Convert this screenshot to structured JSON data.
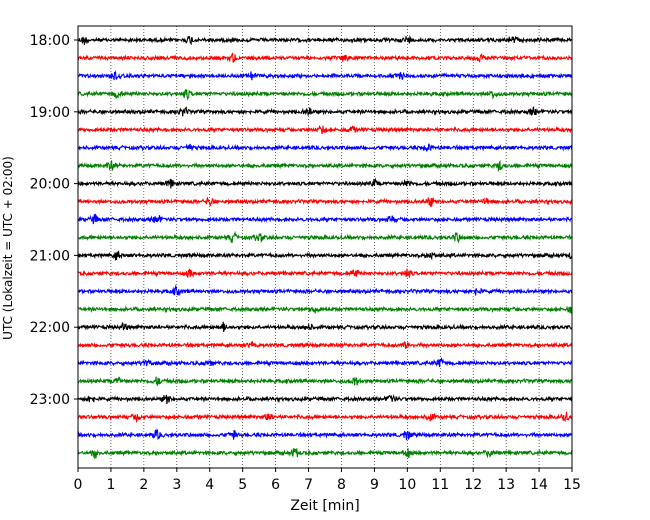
{
  "chart_data": {
    "type": "line",
    "xlabel": "Zeit  [min]",
    "ylabel": "UTC (Lokalzeit = UTC + 02:00)",
    "xlim": [
      0,
      15
    ],
    "x_ticks": [
      0,
      1,
      2,
      3,
      4,
      5,
      6,
      7,
      8,
      9,
      10,
      11,
      12,
      13,
      14,
      15
    ],
    "x_tick_labels": [
      "0",
      "1",
      "2",
      "3",
      "4",
      "5",
      "6",
      "7",
      "8",
      "9",
      "10",
      "11",
      "12",
      "13",
      "14",
      "15"
    ],
    "y_tick_labels": [
      "18:00",
      "19:00",
      "20:00",
      "21:00",
      "22:00",
      "23:00"
    ],
    "y_tick_row_index": [
      0,
      4,
      8,
      12,
      16,
      20
    ],
    "trace_minutes_per_row": 15,
    "row_start_times": [
      "18:00",
      "18:15",
      "18:30",
      "18:45",
      "19:00",
      "19:15",
      "19:30",
      "19:45",
      "20:00",
      "20:15",
      "20:30",
      "20:45",
      "21:00",
      "21:15",
      "21:30",
      "21:45",
      "22:00",
      "22:15",
      "22:30",
      "22:45",
      "23:00",
      "23:15",
      "23:30",
      "23:45"
    ],
    "row_colors": [
      "#000000",
      "#ff0000",
      "#0000ff",
      "#008000"
    ],
    "grid": "vertical-dotted",
    "series": [
      {
        "start": "18:00",
        "color": "#000000",
        "events": [
          0.2,
          3.4,
          10,
          13.2
        ]
      },
      {
        "start": "18:15",
        "color": "#ff0000",
        "events": [
          4.7,
          8.1,
          12.2
        ]
      },
      {
        "start": "18:30",
        "color": "#0000ff",
        "events": [
          1.1,
          5.3,
          9.8
        ]
      },
      {
        "start": "18:45",
        "color": "#008000",
        "events": [
          1.2,
          3.3,
          12.6
        ]
      },
      {
        "start": "19:00",
        "color": "#000000",
        "events": [
          3.2,
          7,
          13.8
        ]
      },
      {
        "start": "19:15",
        "color": "#ff0000",
        "events": [
          7.4,
          8.3
        ]
      },
      {
        "start": "19:30",
        "color": "#0000ff",
        "events": [
          3.4,
          10.6
        ]
      },
      {
        "start": "19:45",
        "color": "#008000",
        "events": [
          1,
          12.8
        ]
      },
      {
        "start": "20:00",
        "color": "#000000",
        "events": [
          2.8,
          9,
          10
        ]
      },
      {
        "start": "20:15",
        "color": "#ff0000",
        "events": [
          4,
          10.7,
          12.4
        ]
      },
      {
        "start": "20:30",
        "color": "#0000ff",
        "events": [
          0.5,
          2.4,
          9.5
        ]
      },
      {
        "start": "20:45",
        "color": "#008000",
        "events": [
          4.7,
          5.5,
          11.5
        ]
      },
      {
        "start": "21:00",
        "color": "#000000",
        "events": [
          1.2,
          10.7,
          15
        ]
      },
      {
        "start": "21:15",
        "color": "#ff0000",
        "events": [
          3.4,
          8.4,
          10
        ]
      },
      {
        "start": "21:30",
        "color": "#0000ff",
        "events": [
          3,
          12.1
        ]
      },
      {
        "start": "21:45",
        "color": "#008000",
        "events": [
          7.2,
          15
        ]
      },
      {
        "start": "22:00",
        "color": "#000000",
        "events": [
          1.4,
          4.4,
          7
        ]
      },
      {
        "start": "22:15",
        "color": "#ff0000",
        "events": [
          5.3,
          10
        ]
      },
      {
        "start": "22:30",
        "color": "#0000ff",
        "events": [
          2.1,
          4,
          11
        ]
      },
      {
        "start": "22:45",
        "color": "#008000",
        "events": [
          1.2,
          2.4,
          8.4
        ]
      },
      {
        "start": "23:00",
        "color": "#000000",
        "events": [
          0.4,
          2.7,
          9.5
        ]
      },
      {
        "start": "23:15",
        "color": "#ff0000",
        "events": [
          1.8,
          5.8,
          10.7,
          14.8
        ]
      },
      {
        "start": "23:30",
        "color": "#0000ff",
        "events": [
          2.4,
          4.7,
          10
        ]
      },
      {
        "start": "23:45",
        "color": "#008000",
        "events": [
          0.5,
          6.6,
          10,
          12.5
        ]
      }
    ]
  }
}
